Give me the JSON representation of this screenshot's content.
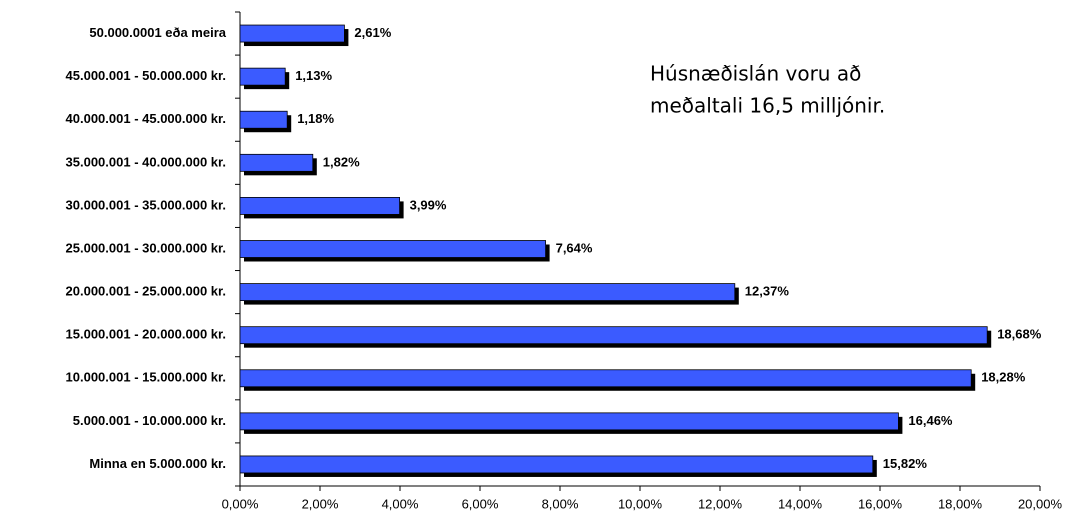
{
  "chart_data": {
    "type": "bar",
    "orientation": "horizontal",
    "categories": [
      "50.000.0001 eða meira",
      "45.000.001 - 50.000.000 kr.",
      "40.000.001 - 45.000.000 kr.",
      "35.000.001 - 40.000.000 kr.",
      "30.000.001 - 35.000.000 kr.",
      "25.000.001 - 30.000.000 kr.",
      "20.000.001 - 25.000.000 kr.",
      "15.000.001 - 20.000.000 kr.",
      "10.000.001 - 15.000.000 kr.",
      "5.000.001 - 10.000.000 kr.",
      "Minna en 5.000.000 kr."
    ],
    "values": [
      2.61,
      1.13,
      1.18,
      1.82,
      3.99,
      7.64,
      12.37,
      18.68,
      18.28,
      16.46,
      15.82
    ],
    "value_labels": [
      "2,61%",
      "1,13%",
      "1,18%",
      "1,82%",
      "3,99%",
      "7,64%",
      "12,37%",
      "18,68%",
      "18,28%",
      "16,46%",
      "15,82%"
    ],
    "color": "#3b5bff",
    "xlim": [
      0,
      20
    ],
    "xticks": [
      {
        "value": 0,
        "label": "0,00%"
      },
      {
        "value": 2,
        "label": "2,00%"
      },
      {
        "value": 4,
        "label": "4,00%"
      },
      {
        "value": 6,
        "label": "6,00%"
      },
      {
        "value": 8,
        "label": "8,00%"
      },
      {
        "value": 10,
        "label": "10,00%"
      },
      {
        "value": 12,
        "label": "12,00%"
      },
      {
        "value": 14,
        "label": "14,00%"
      },
      {
        "value": 16,
        "label": "16,00%"
      },
      {
        "value": 18,
        "label": "18,00%"
      },
      {
        "value": 20,
        "label": "20,00%"
      }
    ],
    "annotation": [
      "Húsnæðislán voru að",
      "meðaltali 16,5 milljónir."
    ]
  }
}
